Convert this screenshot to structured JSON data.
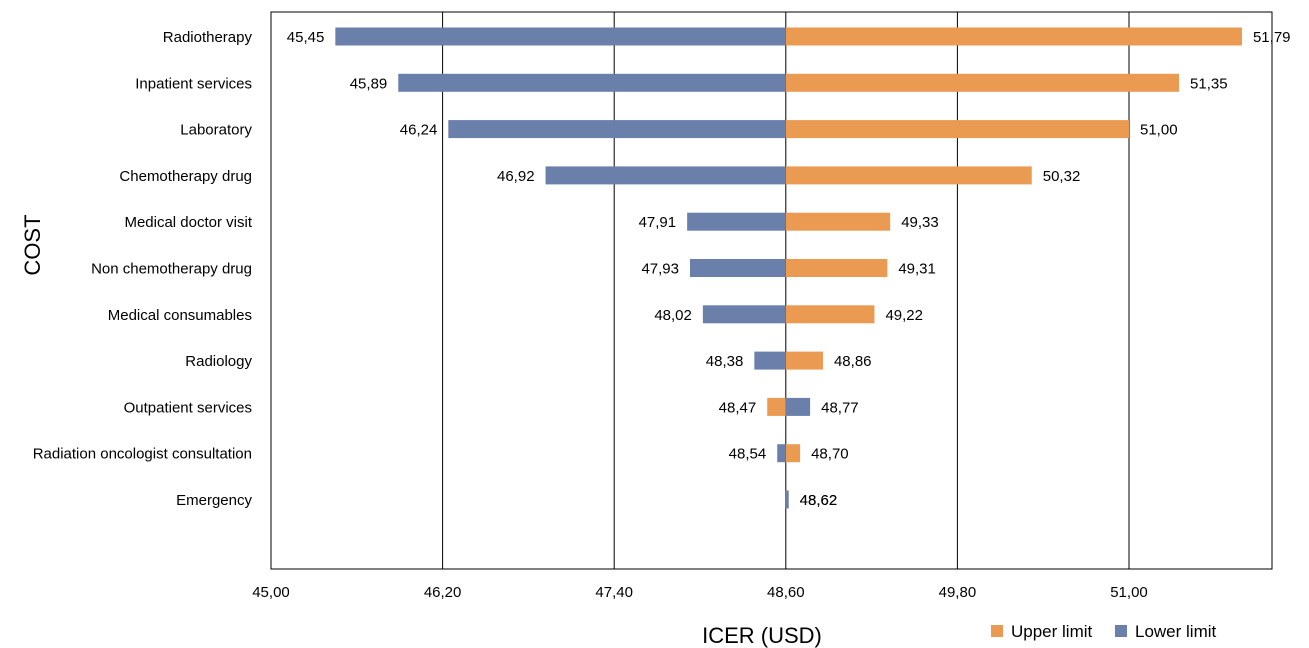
{
  "chart_data": {
    "type": "bar",
    "orientation": "horizontal",
    "subtype": "tornado",
    "xlabel": "ICER (USD)",
    "ylabel": "COST",
    "base_value": 48.6,
    "xlim": [
      45.0,
      52.0
    ],
    "x_ticks": [
      45.0,
      46.2,
      47.4,
      48.6,
      49.8,
      51.0
    ],
    "x_tick_labels": [
      "45,00",
      "46,20",
      "47,40",
      "48,60",
      "49,80",
      "51,00"
    ],
    "grid": "vertical",
    "legend_position": "bottom-right",
    "categories": [
      "Radiotherapy",
      "Inpatient services",
      "Laboratory",
      "Chemotherapy drug",
      "Medical doctor visit",
      "Non chemotherapy drug",
      "Medical consumables",
      "Radiology",
      "Outpatient services",
      "Radiation oncologist consultation",
      "Emergency"
    ],
    "series": [
      {
        "name": "Upper limit",
        "color": "#eb9a52",
        "values": [
          51.79,
          51.35,
          51.0,
          50.32,
          49.33,
          49.31,
          49.22,
          48.86,
          48.47,
          48.7,
          48.62
        ],
        "labels": [
          "51,79",
          "51,35",
          "51,00",
          "50,32",
          "49,33",
          "49,31",
          "49,22",
          "48,86",
          "48,47",
          "48,70",
          "48,62"
        ]
      },
      {
        "name": "Lower limit",
        "color": "#6a80ab",
        "values": [
          45.45,
          45.89,
          46.24,
          46.92,
          47.91,
          47.93,
          48.02,
          48.38,
          48.77,
          48.54,
          48.62
        ],
        "labels": [
          "45,45",
          "45,89",
          "46,24",
          "46,92",
          "47,91",
          "47,93",
          "48,02",
          "48,38",
          "48,77",
          "48,54",
          "48,62"
        ]
      }
    ]
  }
}
